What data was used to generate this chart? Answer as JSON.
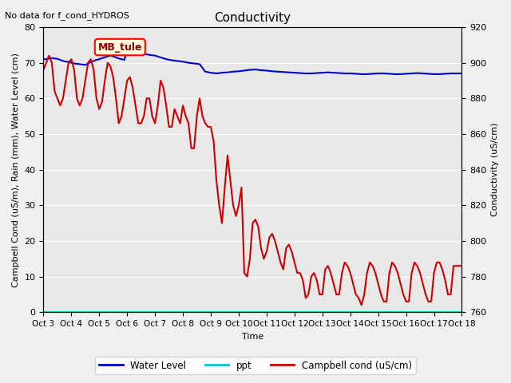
{
  "title": "Conductivity",
  "subtitle": "No data for f_cond_HYDROS",
  "xlabel": "Time",
  "ylabel_left": "Campbell Cond (uS/m), Rain (mm), Water Level (cm)",
  "ylabel_right": "Conductivity (uS/cm)",
  "legend_label": "MB_tule",
  "xlim": [
    0,
    15
  ],
  "ylim_left": [
    0,
    80
  ],
  "ylim_right": [
    760,
    920
  ],
  "x_tick_labels": [
    "Oct 3",
    "Oct 4",
    "Oct 5",
    "Oct 6",
    "Oct 7",
    "Oct 8",
    "Oct 9",
    "Oct 10",
    "Oct 11",
    "Oct 12",
    "Oct 13",
    "Oct 14",
    "Oct 15",
    "Oct 16",
    "Oct 17",
    "Oct 18"
  ],
  "background_color": "#e8e8e8",
  "figure_background": "#f0f0f0",
  "water_level_color": "#0000cc",
  "ppt_color": "#00cccc",
  "campbell_color": "#cc0000",
  "water_level_x": [
    0,
    0.1,
    0.2,
    0.3,
    0.4,
    0.5,
    0.6,
    0.7,
    0.8,
    0.9,
    1.0,
    1.1,
    1.2,
    1.3,
    1.4,
    1.5,
    1.6,
    1.7,
    1.8,
    1.9,
    2.0,
    2.1,
    2.2,
    2.3,
    2.4,
    2.5,
    2.6,
    2.7,
    2.8,
    2.9,
    3.0,
    3.2,
    3.4,
    3.6,
    3.8,
    4.0,
    4.2,
    4.4,
    4.6,
    4.8,
    5.0,
    5.2,
    5.4,
    5.6,
    5.8,
    6.0,
    6.2,
    6.4,
    6.6,
    6.8,
    7.0,
    7.2,
    7.4,
    7.6,
    7.8,
    8.0,
    8.2,
    8.4,
    8.6,
    8.8,
    9.0,
    9.2,
    9.4,
    9.6,
    9.8,
    10.0,
    10.2,
    10.4,
    10.6,
    10.8,
    11.0,
    11.2,
    11.4,
    11.6,
    11.8,
    12.0,
    12.2,
    12.4,
    12.6,
    12.8,
    13.0,
    13.2,
    13.4,
    13.6,
    13.8,
    14.0,
    14.2,
    14.4,
    14.6,
    14.8,
    15.0
  ],
  "water_level_y": [
    71,
    71,
    71.2,
    71.3,
    71.2,
    71.1,
    70.8,
    70.5,
    70.3,
    70.2,
    70.0,
    69.8,
    69.7,
    69.6,
    69.5,
    69.4,
    69.8,
    70.2,
    70.5,
    70.8,
    71.0,
    71.3,
    71.5,
    71.8,
    72.0,
    71.8,
    71.5,
    71.2,
    71.0,
    70.8,
    73.5,
    73.2,
    72.8,
    72.5,
    72.2,
    72.0,
    71.5,
    71.0,
    70.7,
    70.5,
    70.3,
    70.0,
    69.8,
    69.6,
    67.5,
    67.2,
    67.0,
    67.2,
    67.3,
    67.5,
    67.6,
    67.8,
    68.0,
    68.1,
    67.9,
    67.8,
    67.6,
    67.5,
    67.4,
    67.3,
    67.2,
    67.1,
    67.0,
    67.0,
    67.1,
    67.2,
    67.3,
    67.2,
    67.1,
    67.0,
    67.0,
    66.9,
    66.8,
    66.8,
    66.9,
    67.0,
    67.0,
    66.9,
    66.8,
    66.8,
    66.9,
    67.0,
    67.1,
    67.0,
    66.9,
    66.8,
    66.8,
    66.9,
    67.0,
    67.0,
    67.0
  ],
  "campbell_x": [
    0,
    0.1,
    0.2,
    0.3,
    0.4,
    0.5,
    0.6,
    0.7,
    0.8,
    0.9,
    1.0,
    1.1,
    1.2,
    1.3,
    1.4,
    1.5,
    1.6,
    1.7,
    1.8,
    1.9,
    2.0,
    2.1,
    2.2,
    2.3,
    2.4,
    2.5,
    2.6,
    2.7,
    2.8,
    2.9,
    3.0,
    3.1,
    3.2,
    3.3,
    3.4,
    3.5,
    3.6,
    3.7,
    3.8,
    3.9,
    4.0,
    4.1,
    4.2,
    4.3,
    4.4,
    4.5,
    4.6,
    4.7,
    4.8,
    4.9,
    5.0,
    5.1,
    5.2,
    5.3,
    5.4,
    5.5,
    5.6,
    5.7,
    5.8,
    5.9,
    6.0,
    6.1,
    6.2,
    6.3,
    6.4,
    6.5,
    6.6,
    6.7,
    6.8,
    6.9,
    7.0,
    7.1,
    7.2,
    7.3,
    7.4,
    7.5,
    7.6,
    7.7,
    7.8,
    7.9,
    8.0,
    8.1,
    8.2,
    8.3,
    8.4,
    8.5,
    8.6,
    8.7,
    8.8,
    8.9,
    9.0,
    9.1,
    9.2,
    9.3,
    9.4,
    9.5,
    9.6,
    9.7,
    9.8,
    9.9,
    10.0,
    10.1,
    10.2,
    10.3,
    10.4,
    10.5,
    10.6,
    10.7,
    10.8,
    10.9,
    11.0,
    11.1,
    11.2,
    11.3,
    11.4,
    11.5,
    11.6,
    11.7,
    11.8,
    11.9,
    12.0,
    12.1,
    12.2,
    12.3,
    12.4,
    12.5,
    12.6,
    12.7,
    12.8,
    12.9,
    13.0,
    13.1,
    13.2,
    13.3,
    13.4,
    13.5,
    13.6,
    13.7,
    13.8,
    13.9,
    14.0,
    14.1,
    14.2,
    14.3,
    14.4,
    14.5,
    14.6,
    14.7,
    14.8,
    14.9,
    15.0
  ],
  "campbell_y": [
    68,
    70,
    72,
    70,
    62,
    60,
    58,
    60,
    65,
    70,
    71,
    68,
    60,
    58,
    60,
    65,
    70,
    71,
    68,
    60,
    57,
    59,
    65,
    70,
    69,
    66,
    60,
    53,
    55,
    60,
    65,
    66,
    63,
    58,
    53,
    53,
    55,
    60,
    60,
    55,
    53,
    58,
    65,
    63,
    58,
    52,
    52,
    57,
    55,
    53,
    58,
    55,
    53,
    46,
    46,
    55,
    60,
    55,
    53,
    52,
    52,
    48,
    37,
    30,
    25,
    35,
    44,
    37,
    30,
    27,
    30,
    35,
    11,
    10,
    15,
    25,
    26,
    24,
    18,
    15,
    17,
    21,
    22,
    20,
    17,
    14,
    12,
    18,
    19,
    17,
    14,
    11,
    11,
    9,
    4,
    5,
    10,
    11,
    9,
    5,
    5,
    12,
    13,
    11,
    8,
    5,
    5,
    11,
    14,
    13,
    11,
    8,
    5,
    4,
    2,
    5,
    11,
    14,
    13,
    11,
    8,
    5,
    3,
    3,
    11,
    14,
    13,
    11,
    8,
    5,
    3,
    3,
    11,
    14,
    13,
    11,
    8,
    5,
    3,
    3,
    11,
    14,
    14,
    12,
    9,
    5,
    5,
    13,
    13,
    13,
    13
  ]
}
